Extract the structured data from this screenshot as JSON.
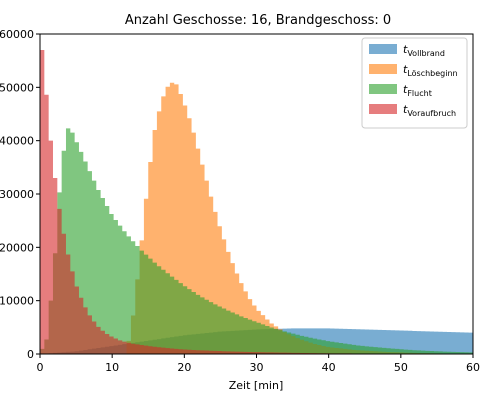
{
  "chart_data": {
    "type": "histogram",
    "title": "Anzahl Geschosse: 16, Brandgeschoss: 0",
    "xlabel": "Zeit [min]",
    "ylabel": "",
    "xlim": [
      0,
      60
    ],
    "ylim": [
      0,
      60000
    ],
    "x_ticks": [
      0,
      10,
      20,
      30,
      40,
      50,
      60
    ],
    "y_ticks": [
      0,
      10000,
      20000,
      30000,
      40000,
      50000,
      60000
    ],
    "y_tick_labels": [
      "0",
      "10000",
      "20000",
      "30000",
      "40000",
      "50000",
      "60000"
    ],
    "legend_position": "top-right",
    "grid": false,
    "series": [
      {
        "name_main": "t",
        "name_sub": "Vollbrand",
        "color": "#1f77b4",
        "alpha": 0.6,
        "x": [
          0,
          5,
          10,
          15,
          20,
          25,
          30,
          35,
          40,
          45,
          50,
          55,
          60
        ],
        "y": [
          0,
          500,
          1500,
          2500,
          3500,
          4200,
          4600,
          4800,
          4800,
          4600,
          4400,
          4200,
          4000
        ]
      },
      {
        "name_main": "t",
        "name_sub": "Löschbeginn",
        "color": "#ff7f0e",
        "alpha": 0.6,
        "x": [
          0,
          12,
          13,
          14,
          15,
          16,
          17,
          18,
          19,
          20,
          21,
          22,
          23,
          24,
          25,
          26,
          27,
          28,
          29,
          30,
          32,
          34,
          36,
          38,
          40,
          44,
          48,
          52,
          56,
          60
        ],
        "y": [
          0,
          100,
          8000,
          20000,
          33000,
          43000,
          48000,
          51000,
          50500,
          47000,
          43000,
          38000,
          33000,
          28000,
          23500,
          19500,
          16000,
          13000,
          10500,
          8500,
          5800,
          4000,
          2800,
          1900,
          1300,
          700,
          400,
          200,
          100,
          50
        ]
      },
      {
        "name_main": "t",
        "name_sub": "Flucht",
        "color": "#2ca02c",
        "alpha": 0.6,
        "x": [
          0,
          1,
          2,
          3,
          4,
          5,
          6,
          7,
          8,
          9,
          10,
          12,
          14,
          16,
          18,
          20,
          22,
          24,
          26,
          28,
          30,
          32,
          34,
          36,
          38,
          40,
          44,
          48,
          52,
          56,
          60
        ],
        "y": [
          100,
          3000,
          17000,
          36000,
          43000,
          40000,
          37000,
          34000,
          31000,
          28500,
          26000,
          22500,
          19500,
          17000,
          14800,
          12800,
          11000,
          9500,
          8200,
          7000,
          6000,
          5000,
          4200,
          3500,
          2900,
          2400,
          1600,
          1100,
          700,
          450,
          300
        ]
      },
      {
        "name_main": "t",
        "name_sub": "Voraufbruch",
        "color": "#d62728",
        "alpha": 0.6,
        "x": [
          0,
          0.5,
          1,
          1.5,
          2,
          2.5,
          3,
          4,
          5,
          6,
          7,
          8,
          9,
          10,
          11,
          12,
          13,
          14,
          15,
          16,
          17,
          18,
          20,
          22,
          24,
          26,
          28,
          30,
          32,
          34,
          36,
          38,
          40,
          45,
          50,
          55,
          60
        ],
        "y": [
          60000,
          55000,
          47000,
          40000,
          34000,
          29000,
          24500,
          18000,
          13000,
          9500,
          7000,
          5200,
          4000,
          3200,
          2600,
          2200,
          1900,
          1700,
          1500,
          1350,
          1200,
          1050,
          850,
          700,
          600,
          500,
          420,
          350,
          300,
          250,
          200,
          160,
          130,
          90,
          60,
          40,
          30
        ]
      }
    ]
  }
}
